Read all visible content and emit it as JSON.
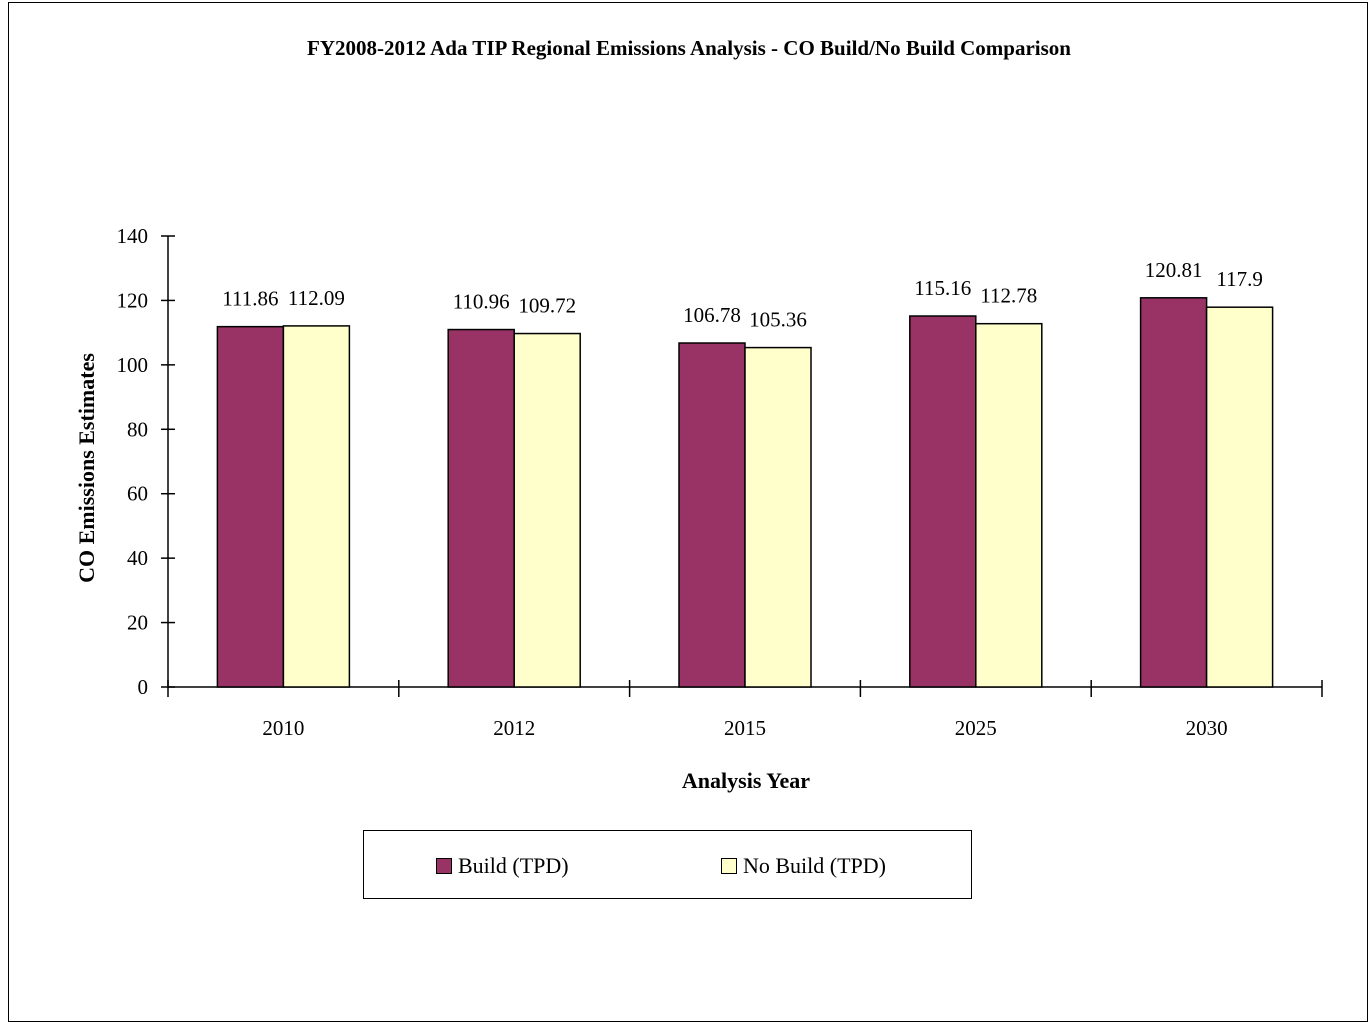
{
  "chart_data": {
    "type": "bar",
    "title": "FY2008-2012 Ada TIP Regional Emissions Analysis - CO Build/No Build Comparison",
    "xlabel": "Analysis Year",
    "ylabel": "CO Emissions Estimates",
    "categories": [
      "2010",
      "2012",
      "2015",
      "2025",
      "2030"
    ],
    "series": [
      {
        "name": "Build (TPD)",
        "color": "#993366",
        "values": [
          111.86,
          110.96,
          106.78,
          115.16,
          120.81
        ],
        "labels": [
          "111.86",
          "110.96",
          "106.78",
          "115.16",
          "120.81"
        ]
      },
      {
        "name": "No Build (TPD)",
        "color": "#FFFFCC",
        "values": [
          112.09,
          109.72,
          105.36,
          112.78,
          117.9
        ],
        "labels": [
          "112.09",
          "109.72",
          "105.36",
          "112.78",
          "117.9"
        ]
      }
    ],
    "ylim": [
      0,
      140
    ],
    "yticks": [
      0,
      20,
      40,
      60,
      80,
      100,
      120,
      140
    ],
    "grid": false,
    "legend_position": "bottom"
  }
}
